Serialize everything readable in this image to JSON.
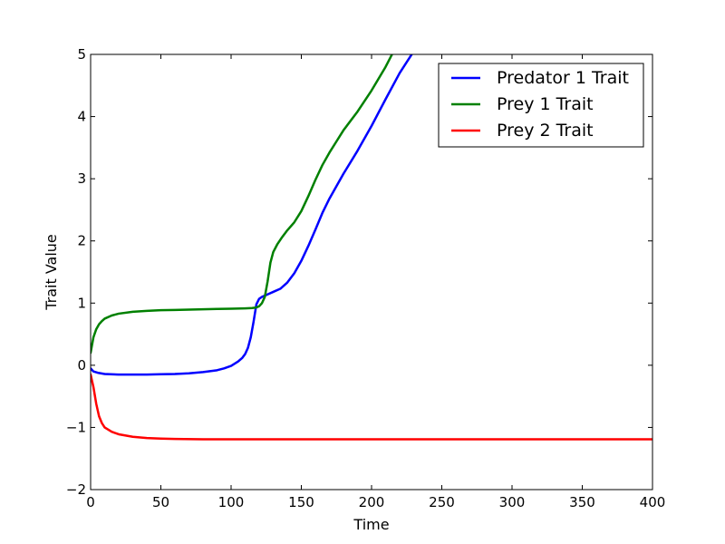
{
  "chart_data": {
    "type": "line",
    "title": "",
    "xlabel": "Time",
    "ylabel": "Trait Value",
    "xlim": [
      0,
      400
    ],
    "ylim": [
      -2,
      5
    ],
    "xticks": [
      0,
      50,
      100,
      150,
      200,
      250,
      300,
      350,
      400
    ],
    "yticks": [
      -2,
      -1,
      0,
      1,
      2,
      3,
      4,
      5
    ],
    "xtick_labels": [
      "0",
      "50",
      "100",
      "150",
      "200",
      "250",
      "300",
      "350",
      "400"
    ],
    "ytick_labels": [
      "−2",
      "−1",
      "0",
      "1",
      "2",
      "3",
      "4",
      "5"
    ],
    "grid": false,
    "legend_position": "top-right",
    "series": [
      {
        "name": "Predator 1 Trait",
        "color": "#0000ff",
        "x": [
          0,
          2,
          5,
          10,
          20,
          30,
          40,
          50,
          60,
          70,
          80,
          90,
          95,
          100,
          105,
          108,
          110,
          112,
          114,
          116,
          118,
          120,
          122,
          125,
          130,
          135,
          140,
          145,
          150,
          155,
          160,
          165,
          170,
          180,
          190,
          200,
          210,
          220,
          230
        ],
        "y": [
          -0.05,
          -0.1,
          -0.12,
          -0.14,
          -0.15,
          -0.15,
          -0.15,
          -0.145,
          -0.14,
          -0.13,
          -0.11,
          -0.08,
          -0.05,
          -0.01,
          0.06,
          0.12,
          0.18,
          0.28,
          0.45,
          0.7,
          0.98,
          1.07,
          1.1,
          1.13,
          1.18,
          1.23,
          1.33,
          1.48,
          1.68,
          1.92,
          2.18,
          2.45,
          2.68,
          3.08,
          3.45,
          3.85,
          4.28,
          4.7,
          5.05
        ]
      },
      {
        "name": "Prey 1 Trait",
        "color": "#008000",
        "x": [
          0,
          2,
          4,
          6,
          8,
          10,
          15,
          20,
          30,
          40,
          50,
          60,
          70,
          80,
          90,
          100,
          110,
          115,
          118,
          120,
          122,
          124,
          126,
          128,
          130,
          133,
          136,
          140,
          145,
          150,
          155,
          160,
          165,
          170,
          175,
          180,
          190,
          200,
          210,
          215
        ],
        "y": [
          0.2,
          0.45,
          0.58,
          0.66,
          0.71,
          0.75,
          0.8,
          0.83,
          0.86,
          0.875,
          0.885,
          0.89,
          0.895,
          0.9,
          0.905,
          0.91,
          0.915,
          0.92,
          0.93,
          0.95,
          1.0,
          1.1,
          1.35,
          1.65,
          1.82,
          1.95,
          2.05,
          2.17,
          2.3,
          2.48,
          2.72,
          2.98,
          3.22,
          3.42,
          3.6,
          3.78,
          4.08,
          4.42,
          4.8,
          5.02
        ]
      },
      {
        "name": "Prey 2 Trait",
        "color": "#ff0000",
        "x": [
          0,
          2,
          4,
          6,
          8,
          10,
          15,
          20,
          30,
          40,
          50,
          60,
          80,
          100,
          150,
          200,
          250,
          300,
          350,
          400
        ],
        "y": [
          -0.15,
          -0.35,
          -0.62,
          -0.82,
          -0.93,
          -1.0,
          -1.07,
          -1.11,
          -1.15,
          -1.17,
          -1.18,
          -1.185,
          -1.19,
          -1.19,
          -1.19,
          -1.19,
          -1.19,
          -1.19,
          -1.19,
          -1.19
        ]
      }
    ]
  }
}
